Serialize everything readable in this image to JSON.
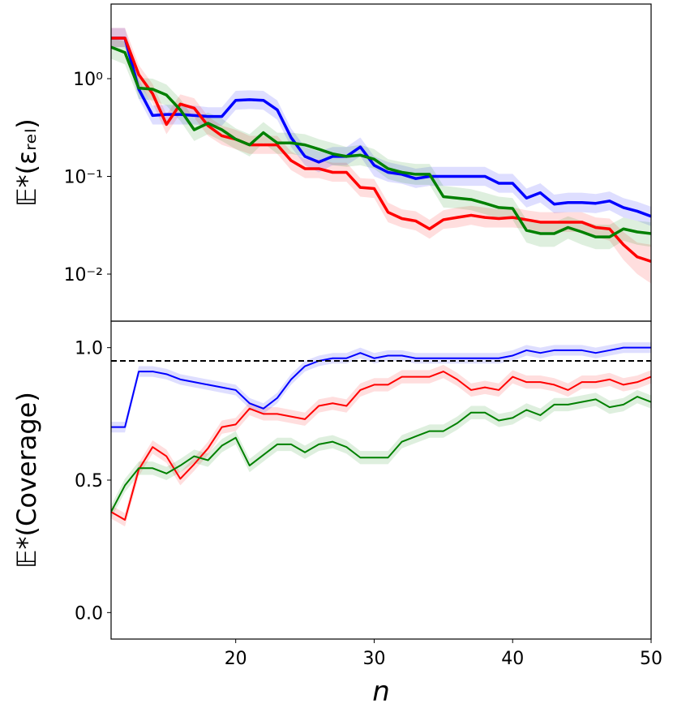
{
  "chart_data": [
    {
      "type": "line",
      "ylabel": "𝔼*(εᵣₑₗ)",
      "log": true,
      "xlim": [
        11,
        50
      ],
      "ylim": [
        0.0033,
        5.8
      ],
      "yticks": [
        {
          "value": 1,
          "label": "10⁰"
        },
        {
          "value": 0.1,
          "label": "10⁻¹"
        },
        {
          "value": 0.01,
          "label": "10⁻²"
        }
      ],
      "x": [
        11,
        12,
        13,
        14,
        15,
        16,
        17,
        18,
        19,
        20,
        21,
        22,
        23,
        24,
        25,
        26,
        27,
        28,
        29,
        30,
        31,
        32,
        33,
        34,
        35,
        36,
        37,
        38,
        39,
        40,
        41,
        42,
        43,
        44,
        45,
        46,
        47,
        48,
        49,
        50
      ],
      "series": [
        {
          "color": "#0000ff",
          "values": [
            2.6,
            2.6,
            0.78,
            0.42,
            0.43,
            0.43,
            0.42,
            0.41,
            0.41,
            0.6,
            0.61,
            0.6,
            0.48,
            0.25,
            0.16,
            0.14,
            0.16,
            0.16,
            0.2,
            0.13,
            0.11,
            0.105,
            0.095,
            0.1,
            0.1,
            0.1,
            0.1,
            0.1,
            0.085,
            0.085,
            0.06,
            0.068,
            0.052,
            0.054,
            0.054,
            0.053,
            0.056,
            0.048,
            0.044,
            0.039
          ],
          "lower": [
            2.1,
            2.1,
            0.62,
            0.34,
            0.34,
            0.34,
            0.34,
            0.33,
            0.33,
            0.48,
            0.49,
            0.48,
            0.38,
            0.2,
            0.13,
            0.11,
            0.13,
            0.13,
            0.16,
            0.1,
            0.088,
            0.084,
            0.076,
            0.08,
            0.08,
            0.08,
            0.08,
            0.08,
            0.068,
            0.068,
            0.048,
            0.054,
            0.042,
            0.043,
            0.043,
            0.042,
            0.045,
            0.038,
            0.035,
            0.031
          ],
          "upper": [
            3.3,
            3.3,
            0.98,
            0.53,
            0.54,
            0.54,
            0.53,
            0.51,
            0.51,
            0.75,
            0.76,
            0.75,
            0.6,
            0.31,
            0.2,
            0.18,
            0.2,
            0.2,
            0.25,
            0.16,
            0.14,
            0.13,
            0.12,
            0.125,
            0.125,
            0.125,
            0.125,
            0.125,
            0.106,
            0.106,
            0.075,
            0.085,
            0.065,
            0.068,
            0.068,
            0.066,
            0.07,
            0.06,
            0.055,
            0.049
          ]
        },
        {
          "color": "#ff0000",
          "values": [
            2.6,
            2.6,
            1.1,
            0.7,
            0.34,
            0.55,
            0.5,
            0.33,
            0.26,
            0.24,
            0.21,
            0.21,
            0.21,
            0.145,
            0.12,
            0.12,
            0.11,
            0.11,
            0.077,
            0.075,
            0.043,
            0.037,
            0.035,
            0.029,
            0.036,
            0.038,
            0.04,
            0.038,
            0.037,
            0.038,
            0.036,
            0.034,
            0.034,
            0.034,
            0.034,
            0.03,
            0.029,
            0.02,
            0.015,
            0.0135
          ],
          "lower": [
            2.1,
            2.1,
            0.88,
            0.56,
            0.27,
            0.44,
            0.4,
            0.26,
            0.21,
            0.19,
            0.17,
            0.17,
            0.17,
            0.116,
            0.096,
            0.096,
            0.088,
            0.088,
            0.062,
            0.06,
            0.034,
            0.03,
            0.028,
            0.023,
            0.029,
            0.03,
            0.032,
            0.03,
            0.03,
            0.03,
            0.029,
            0.027,
            0.027,
            0.027,
            0.027,
            0.024,
            0.022,
            0.014,
            0.01,
            0.008
          ],
          "upper": [
            3.3,
            3.3,
            1.38,
            0.88,
            0.43,
            0.69,
            0.63,
            0.41,
            0.33,
            0.3,
            0.26,
            0.26,
            0.26,
            0.18,
            0.15,
            0.15,
            0.138,
            0.138,
            0.096,
            0.094,
            0.054,
            0.046,
            0.044,
            0.036,
            0.045,
            0.048,
            0.05,
            0.048,
            0.046,
            0.048,
            0.045,
            0.043,
            0.043,
            0.043,
            0.043,
            0.038,
            0.037,
            0.027,
            0.021,
            0.02
          ]
        },
        {
          "color": "#008000",
          "values": [
            2.1,
            1.85,
            0.8,
            0.78,
            0.68,
            0.48,
            0.3,
            0.35,
            0.3,
            0.24,
            0.21,
            0.28,
            0.22,
            0.22,
            0.21,
            0.19,
            0.17,
            0.16,
            0.165,
            0.15,
            0.12,
            0.11,
            0.105,
            0.105,
            0.062,
            0.06,
            0.058,
            0.053,
            0.048,
            0.047,
            0.028,
            0.026,
            0.026,
            0.03,
            0.027,
            0.024,
            0.024,
            0.029,
            0.027,
            0.026
          ],
          "lower": [
            1.6,
            1.4,
            0.62,
            0.6,
            0.53,
            0.37,
            0.23,
            0.27,
            0.23,
            0.19,
            0.16,
            0.22,
            0.17,
            0.17,
            0.16,
            0.15,
            0.13,
            0.125,
            0.13,
            0.12,
            0.094,
            0.086,
            0.082,
            0.082,
            0.048,
            0.047,
            0.045,
            0.041,
            0.037,
            0.036,
            0.021,
            0.019,
            0.019,
            0.023,
            0.02,
            0.018,
            0.018,
            0.022,
            0.02,
            0.019
          ],
          "upper": [
            2.6,
            2.4,
            1.02,
            1.0,
            0.87,
            0.62,
            0.39,
            0.45,
            0.39,
            0.31,
            0.27,
            0.36,
            0.28,
            0.28,
            0.27,
            0.24,
            0.22,
            0.2,
            0.21,
            0.19,
            0.15,
            0.14,
            0.134,
            0.134,
            0.08,
            0.077,
            0.074,
            0.068,
            0.062,
            0.06,
            0.036,
            0.034,
            0.034,
            0.039,
            0.035,
            0.032,
            0.032,
            0.038,
            0.035,
            0.034
          ]
        }
      ]
    },
    {
      "type": "line",
      "ylabel": "𝔼*(Coverage)",
      "xlabel": "n",
      "xlim": [
        11,
        50
      ],
      "ylim": [
        -0.1,
        1.1
      ],
      "xticks": [
        20,
        30,
        40,
        50
      ],
      "yticks": [
        {
          "value": 0,
          "label": "0.0"
        },
        {
          "value": 0.5,
          "label": "0.5"
        },
        {
          "value": 1,
          "label": "1.0"
        }
      ],
      "hline": {
        "value": 0.95,
        "color": "#000000",
        "style": "dashed"
      },
      "x": [
        11,
        12,
        13,
        14,
        15,
        16,
        17,
        18,
        19,
        20,
        21,
        22,
        23,
        24,
        25,
        26,
        27,
        28,
        29,
        30,
        31,
        32,
        33,
        34,
        35,
        36,
        37,
        38,
        39,
        40,
        41,
        42,
        43,
        44,
        45,
        46,
        47,
        48,
        49,
        50
      ],
      "series": [
        {
          "color": "#0000ff",
          "values": [
            0.7,
            0.7,
            0.91,
            0.91,
            0.9,
            0.88,
            0.87,
            0.86,
            0.85,
            0.84,
            0.79,
            0.77,
            0.81,
            0.88,
            0.93,
            0.95,
            0.96,
            0.96,
            0.98,
            0.96,
            0.97,
            0.97,
            0.96,
            0.96,
            0.96,
            0.96,
            0.96,
            0.96,
            0.96,
            0.97,
            0.99,
            0.98,
            0.99,
            0.99,
            0.99,
            0.98,
            0.99,
            1.0,
            1.0,
            1.0
          ],
          "lower": [
            0.68,
            0.68,
            0.89,
            0.89,
            0.88,
            0.86,
            0.85,
            0.84,
            0.83,
            0.82,
            0.77,
            0.75,
            0.79,
            0.86,
            0.91,
            0.93,
            0.94,
            0.94,
            0.96,
            0.94,
            0.95,
            0.95,
            0.94,
            0.94,
            0.94,
            0.94,
            0.94,
            0.94,
            0.94,
            0.95,
            0.97,
            0.96,
            0.97,
            0.97,
            0.97,
            0.96,
            0.97,
            0.98,
            0.98,
            0.98
          ],
          "upper": [
            0.72,
            0.72,
            0.93,
            0.93,
            0.92,
            0.9,
            0.89,
            0.88,
            0.87,
            0.86,
            0.81,
            0.79,
            0.83,
            0.9,
            0.95,
            0.97,
            0.98,
            0.98,
            1.0,
            0.98,
            0.99,
            0.99,
            0.98,
            0.98,
            0.98,
            0.98,
            0.98,
            0.98,
            0.98,
            0.99,
            1.01,
            1.0,
            1.01,
            1.01,
            1.01,
            1.0,
            1.01,
            1.02,
            1.02,
            1.02
          ]
        },
        {
          "color": "#ff0000",
          "values": [
            0.38,
            0.35,
            0.54,
            0.625,
            0.59,
            0.505,
            0.56,
            0.62,
            0.7,
            0.71,
            0.77,
            0.75,
            0.75,
            0.74,
            0.73,
            0.78,
            0.79,
            0.78,
            0.84,
            0.86,
            0.86,
            0.89,
            0.89,
            0.89,
            0.91,
            0.88,
            0.84,
            0.85,
            0.84,
            0.89,
            0.87,
            0.87,
            0.86,
            0.84,
            0.87,
            0.87,
            0.88,
            0.86,
            0.87,
            0.89
          ],
          "lower": [
            0.355,
            0.325,
            0.515,
            0.6,
            0.565,
            0.48,
            0.535,
            0.595,
            0.675,
            0.685,
            0.745,
            0.725,
            0.725,
            0.715,
            0.705,
            0.755,
            0.765,
            0.755,
            0.815,
            0.835,
            0.835,
            0.865,
            0.865,
            0.865,
            0.885,
            0.855,
            0.815,
            0.825,
            0.815,
            0.865,
            0.845,
            0.845,
            0.835,
            0.815,
            0.845,
            0.845,
            0.855,
            0.835,
            0.845,
            0.865
          ],
          "upper": [
            0.405,
            0.375,
            0.565,
            0.65,
            0.615,
            0.53,
            0.585,
            0.645,
            0.725,
            0.735,
            0.795,
            0.775,
            0.775,
            0.765,
            0.755,
            0.805,
            0.815,
            0.805,
            0.865,
            0.885,
            0.885,
            0.915,
            0.915,
            0.915,
            0.935,
            0.905,
            0.865,
            0.875,
            0.865,
            0.915,
            0.895,
            0.895,
            0.885,
            0.865,
            0.895,
            0.895,
            0.905,
            0.885,
            0.895,
            0.915
          ]
        },
        {
          "color": "#008000",
          "values": [
            0.38,
            0.48,
            0.545,
            0.545,
            0.525,
            0.555,
            0.59,
            0.575,
            0.63,
            0.66,
            0.555,
            0.595,
            0.635,
            0.635,
            0.605,
            0.635,
            0.645,
            0.625,
            0.585,
            0.585,
            0.585,
            0.645,
            0.665,
            0.685,
            0.685,
            0.715,
            0.755,
            0.755,
            0.725,
            0.735,
            0.765,
            0.745,
            0.785,
            0.785,
            0.795,
            0.805,
            0.775,
            0.785,
            0.815,
            0.795
          ],
          "lower": [
            0.355,
            0.455,
            0.52,
            0.52,
            0.5,
            0.53,
            0.565,
            0.55,
            0.605,
            0.635,
            0.53,
            0.57,
            0.61,
            0.61,
            0.58,
            0.61,
            0.62,
            0.6,
            0.56,
            0.56,
            0.56,
            0.62,
            0.64,
            0.66,
            0.66,
            0.69,
            0.73,
            0.73,
            0.7,
            0.71,
            0.74,
            0.72,
            0.76,
            0.76,
            0.77,
            0.78,
            0.75,
            0.76,
            0.79,
            0.77
          ],
          "upper": [
            0.405,
            0.505,
            0.57,
            0.57,
            0.55,
            0.58,
            0.615,
            0.6,
            0.655,
            0.685,
            0.58,
            0.62,
            0.66,
            0.66,
            0.63,
            0.66,
            0.67,
            0.65,
            0.61,
            0.61,
            0.61,
            0.67,
            0.69,
            0.71,
            0.71,
            0.74,
            0.78,
            0.78,
            0.75,
            0.76,
            0.79,
            0.77,
            0.81,
            0.81,
            0.82,
            0.83,
            0.8,
            0.81,
            0.84,
            0.82
          ]
        }
      ]
    }
  ]
}
